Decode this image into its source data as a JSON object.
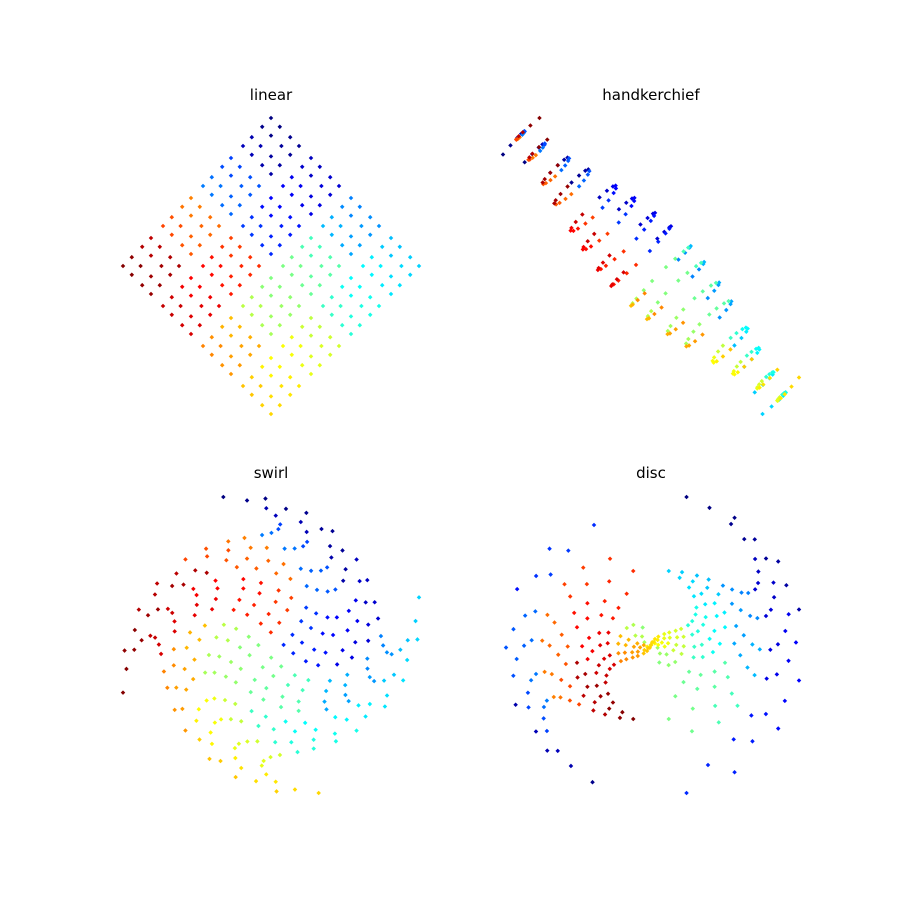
{
  "figure": {
    "background": "#ffffff",
    "colormap": "jet",
    "colormap_stops": [
      "#00007f",
      "#0000ff",
      "#007fff",
      "#00ffff",
      "#7fff7f",
      "#ffff00",
      "#ff7f00",
      "#ff0000",
      "#7f0000"
    ]
  },
  "chart_data": [
    {
      "type": "scatter",
      "title": "linear",
      "variation": "linear",
      "axes_visible": false,
      "grid": false,
      "legend": "none",
      "color_by": "jet colormap",
      "xlim": [
        -1,
        1
      ],
      "ylim": [
        -1,
        1
      ],
      "recursion_depth": 4,
      "pattern": "four diamond-arranged clusters, each recursively made of four smaller clusters"
    },
    {
      "type": "scatter",
      "title": "handkerchief",
      "variation": "handkerchief",
      "axes_visible": false,
      "grid": false,
      "legend": "none",
      "color_by": "jet colormap",
      "recursion_depth": 4,
      "pattern": "two bow-tie shaped groups along the diagonal"
    },
    {
      "type": "scatter",
      "title": "swirl",
      "variation": "swirl",
      "axes_visible": false,
      "grid": false,
      "legend": "none",
      "color_by": "jet colormap",
      "recursion_depth": 4,
      "pattern": "sheared cluster grid rotated increasingly with radius"
    },
    {
      "type": "scatter",
      "title": "disc",
      "variation": "disc",
      "axes_visible": false,
      "grid": false,
      "legend": "none",
      "color_by": "jet colormap",
      "recursion_depth": 4,
      "pattern": "concentric arc segments forming a disc"
    }
  ]
}
